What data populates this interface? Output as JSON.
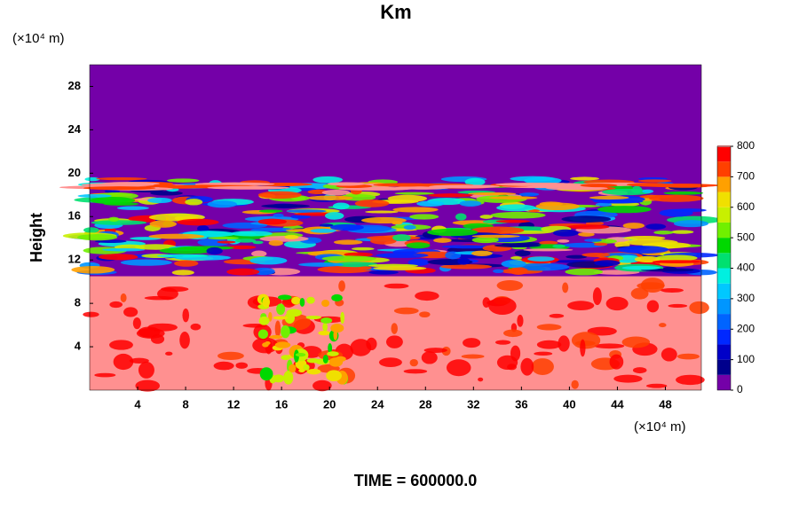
{
  "chart_data": {
    "type": "contour",
    "title": "Km",
    "ylabel": "Height",
    "yunit": "(×10⁴ m)",
    "xunit": "(×10⁴ m)",
    "annotation": "TIME = 600000.0",
    "xlim": [
      0,
      51
    ],
    "xticks": [
      4,
      8,
      12,
      16,
      20,
      24,
      28,
      32,
      36,
      40,
      44,
      48
    ],
    "ylim": [
      0,
      30
    ],
    "yticks": [
      4,
      8,
      12,
      16,
      20,
      24,
      28
    ],
    "colorbar": {
      "levels": [
        0,
        50,
        100,
        150,
        200,
        250,
        300,
        350,
        400,
        450,
        500,
        550,
        600,
        650,
        700,
        750,
        800
      ],
      "colors": [
        "#7400a8",
        "#00008c",
        "#0000c8",
        "#0028ff",
        "#0064ff",
        "#0096ff",
        "#00c8ff",
        "#00f0e0",
        "#00e070",
        "#00d800",
        "#70f000",
        "#c8f000",
        "#f0e000",
        "#ffa000",
        "#ff4000",
        "#ff0000",
        "#ff9090"
      ],
      "ticks": [
        0,
        100,
        200,
        300,
        400,
        500,
        600,
        700,
        800
      ]
    }
  }
}
